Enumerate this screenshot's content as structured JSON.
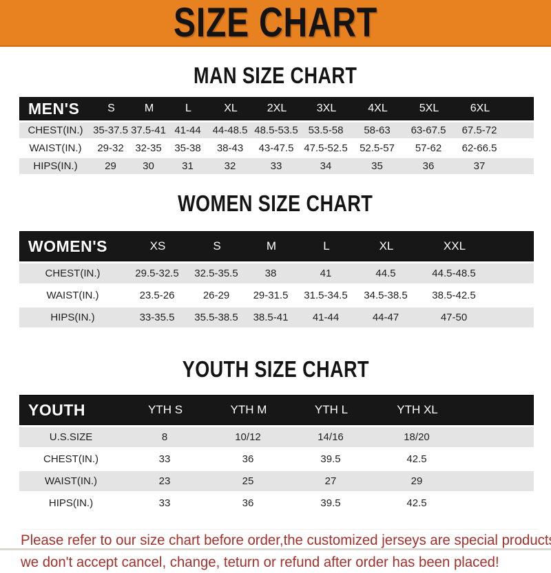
{
  "banner": {
    "title": "SIZE CHART",
    "bg_color": "#E8811F"
  },
  "men": {
    "title": "MAN SIZE CHART",
    "header": {
      "label": "MEN'S",
      "sizes": [
        "S",
        "M",
        "L",
        "XL",
        "2XL",
        "3XL",
        "4XL",
        "5XL",
        "6XL"
      ]
    },
    "rows": [
      {
        "label": "CHEST(IN.)",
        "values": [
          "35-37.5",
          "37.5-41",
          "41-44",
          "44-48.5",
          "48.5-53.5",
          "53.5-58",
          "58-63",
          "63-67.5",
          "67.5-72"
        ]
      },
      {
        "label": "WAIST(IN.)",
        "values": [
          "29-32",
          "32-35",
          "35-38",
          "38-43",
          "43-47.5",
          "47.5-52.5",
          "52.5-57",
          "57-62",
          "62-66.5"
        ]
      },
      {
        "label": "HIPS(IN.)",
        "values": [
          "29",
          "30",
          "31",
          "32",
          "33",
          "34",
          "35",
          "36",
          "37"
        ]
      }
    ]
  },
  "women": {
    "title": "WOMEN SIZE CHART",
    "header": {
      "label": "WOMEN'S",
      "sizes": [
        "XS",
        "S",
        "M",
        "L",
        "XL",
        "XXL"
      ]
    },
    "rows": [
      {
        "label": "CHEST(IN.)",
        "values": [
          "29.5-32.5",
          "32.5-35.5",
          "38",
          "41",
          "44.5",
          "44.5-48.5"
        ]
      },
      {
        "label": "WAIST(IN.)",
        "values": [
          "23.5-26",
          "26-29",
          "29-31.5",
          "31.5-34.5",
          "34.5-38.5",
          "38.5-42.5"
        ]
      },
      {
        "label": "HIPS(IN.)",
        "values": [
          "33-35.5",
          "35.5-38.5",
          "38.5-41",
          "41-44",
          "44-47",
          "47-50"
        ]
      }
    ]
  },
  "youth": {
    "title": "YOUTH SIZE CHART",
    "header": {
      "label": "YOUTH",
      "sizes": [
        "YTH S",
        "YTH M",
        "YTH L",
        "YTH XL"
      ]
    },
    "rows": [
      {
        "label": "U.S.SIZE",
        "values": [
          "8",
          "10/12",
          "14/16",
          "18/20"
        ]
      },
      {
        "label": "CHEST(IN.)",
        "values": [
          "33",
          "36",
          "39.5",
          "42.5"
        ]
      },
      {
        "label": "WAIST(IN.)",
        "values": [
          "23",
          "25",
          "27",
          "29"
        ]
      },
      {
        "label": "HIPS(IN.)",
        "values": [
          "33",
          "36",
          "39.5",
          "42.5"
        ]
      }
    ]
  },
  "note": {
    "line1": "Please refer to our size chart before order,the customized jerseys are special products,",
    "line2": "we don't accept cancel, change, teturn or refund after order has been placed!",
    "color": "#A5302B"
  },
  "colors": {
    "header_bg": "#171717",
    "row_alt_bg": "#E4E4E4",
    "banner_orange": "#E8811F"
  }
}
